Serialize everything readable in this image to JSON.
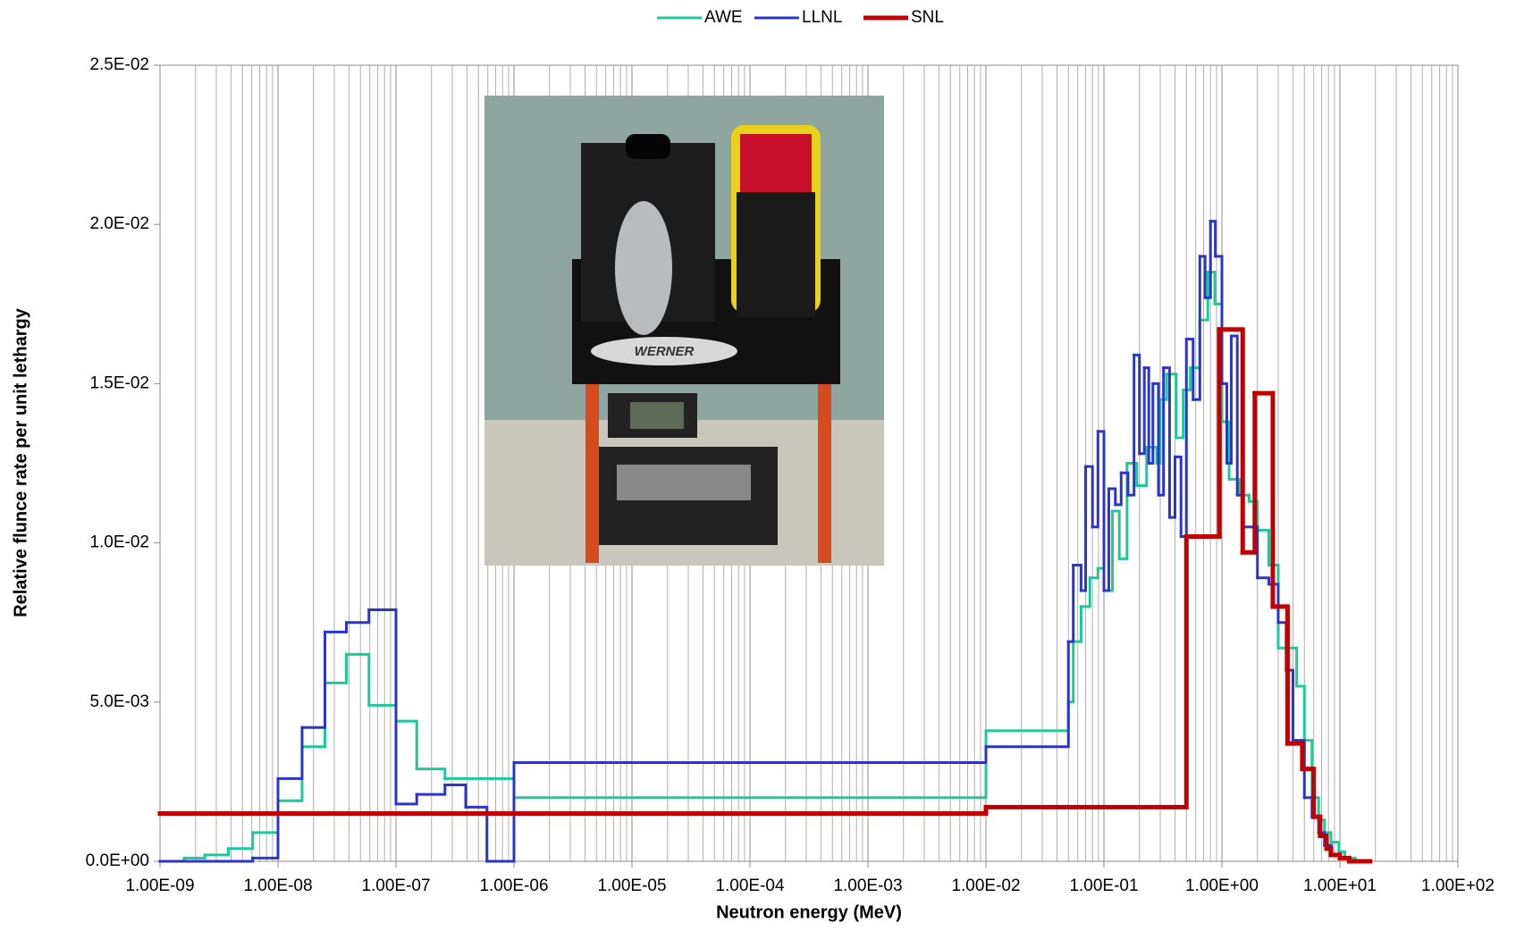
{
  "chart_data": {
    "type": "step",
    "xlabel": "Neutron energy (MeV)",
    "ylabel": "Relative flunce rate per unit lethargy",
    "inset_text": "WERNER",
    "xscale": "log",
    "grid": {
      "x": true,
      "x_minor": true,
      "y": false
    },
    "legend": "top",
    "xlim": [
      1e-09,
      100
    ],
    "ylim": [
      0,
      0.025
    ],
    "xticks": [
      {
        "value": 1e-09,
        "label": "1.00E-09"
      },
      {
        "value": 1e-08,
        "label": "1.00E-08"
      },
      {
        "value": 1e-07,
        "label": "1.00E-07"
      },
      {
        "value": 1e-06,
        "label": "1.00E-06"
      },
      {
        "value": 1e-05,
        "label": "1.00E-05"
      },
      {
        "value": 0.0001,
        "label": "1.00E-04"
      },
      {
        "value": 0.001,
        "label": "1.00E-03"
      },
      {
        "value": 0.01,
        "label": "1.00E-02"
      },
      {
        "value": 0.1,
        "label": "1.00E-01"
      },
      {
        "value": 1,
        "label": "1.00E+00"
      },
      {
        "value": 10,
        "label": "1.00E+01"
      },
      {
        "value": 100,
        "label": "1.00E+02"
      }
    ],
    "yticks": [
      {
        "value": 0,
        "label": "0.0E+00"
      },
      {
        "value": 0.005,
        "label": "5.0E-03"
      },
      {
        "value": 0.01,
        "label": "1.0E-02"
      },
      {
        "value": 0.015,
        "label": "1.5E-02"
      },
      {
        "value": 0.02,
        "label": "2.0E-02"
      },
      {
        "value": 0.025,
        "label": "2.5E-02"
      }
    ],
    "series": [
      {
        "name": "AWE",
        "color": "#1fc89c",
        "width": 3,
        "x": [
          1e-09,
          1.6e-09,
          2.4e-09,
          3.8e-09,
          6.1e-09,
          1e-08,
          1.6e-08,
          2.5e-08,
          3.8e-08,
          5.9e-08,
          1e-07,
          1.5e-07,
          2.6e-07,
          1e-06,
          0.01,
          0.05,
          0.055,
          0.064,
          0.076,
          0.089,
          0.1,
          0.118,
          0.135,
          0.157,
          0.19,
          0.23,
          0.28,
          0.3,
          0.34,
          0.41,
          0.47,
          0.54,
          0.65,
          0.76,
          0.87,
          1.0,
          1.15,
          1.4,
          1.7,
          2.0,
          2.5,
          3.0,
          4.3,
          5.0,
          5.8,
          6.6,
          7.4,
          8.4,
          9.8,
          11,
          13.5,
          18
        ],
        "values": [
          0,
          0.0001,
          0.0002,
          0.0004,
          0.0009,
          0.0019,
          0.0036,
          0.0056,
          0.0065,
          0.0049,
          0.0044,
          0.0029,
          0.0026,
          0.002,
          0.0041,
          0.005,
          0.0069,
          0.008,
          0.0089,
          0.0092,
          0.0085,
          0.011,
          0.0095,
          0.0125,
          0.0118,
          0.013,
          0.0125,
          0.0145,
          0.0153,
          0.0133,
          0.0148,
          0.0155,
          0.017,
          0.0185,
          0.0175,
          0.0138,
          0.012,
          0.0115,
          0.0113,
          0.0104,
          0.0093,
          0.0067,
          0.0055,
          0.0038,
          0.002,
          0.0013,
          0.0009,
          0.0006,
          0.0003,
          0.0001,
          0,
          0
        ]
      },
      {
        "name": "LLNL",
        "color": "#2b35c8",
        "width": 3,
        "x": [
          1e-09,
          6.1e-09,
          1e-08,
          1.6e-08,
          2.5e-08,
          3.8e-08,
          5.9e-08,
          1e-07,
          1.5e-07,
          2.6e-07,
          3.9e-07,
          5.9e-07,
          1e-06,
          0.01,
          0.05,
          0.055,
          0.064,
          0.07,
          0.08,
          0.089,
          0.1,
          0.11,
          0.125,
          0.14,
          0.16,
          0.18,
          0.2,
          0.22,
          0.24,
          0.26,
          0.29,
          0.32,
          0.36,
          0.4,
          0.45,
          0.5,
          0.57,
          0.65,
          0.72,
          0.8,
          0.88,
          1.0,
          1.1,
          1.2,
          1.35,
          1.5,
          1.8,
          2.0,
          2.5,
          3.0,
          3.5,
          4.0,
          5.0,
          5.8,
          6.6,
          7.4,
          8.5,
          10,
          12,
          18
        ],
        "values": [
          0,
          0.0001,
          0.0026,
          0.0042,
          0.0072,
          0.0075,
          0.0079,
          0.0018,
          0.0021,
          0.0024,
          0.0017,
          0,
          0.0031,
          0.0036,
          0.0069,
          0.0093,
          0.0085,
          0.0124,
          0.0105,
          0.0135,
          0.0085,
          0.0117,
          0.0112,
          0.0122,
          0.0115,
          0.0159,
          0.0128,
          0.0155,
          0.0125,
          0.015,
          0.0115,
          0.0155,
          0.0108,
          0.0127,
          0.0102,
          0.0164,
          0.0145,
          0.019,
          0.0177,
          0.0201,
          0.019,
          0.015,
          0.0125,
          0.0165,
          0.0115,
          0.0105,
          0.0105,
          0.0089,
          0.0087,
          0.0075,
          0.006,
          0.0038,
          0.002,
          0.0014,
          0.0009,
          0.0005,
          0.0002,
          0.0001,
          0,
          0
        ]
      },
      {
        "name": "SNL",
        "color": "#c00000",
        "width": 5,
        "x": [
          1e-09,
          0.01,
          0.5,
          0.95,
          1.5,
          1.9,
          2.7,
          3.6,
          4.8,
          6.0,
          6.8,
          7.7,
          8.4,
          10,
          12,
          18
        ],
        "values": [
          0.0015,
          0.0017,
          0.0102,
          0.0167,
          0.0097,
          0.0147,
          0.008,
          0.0037,
          0.0029,
          0.0014,
          0.0008,
          0.0004,
          0.0002,
          0.0001,
          0,
          0
        ]
      }
    ]
  }
}
